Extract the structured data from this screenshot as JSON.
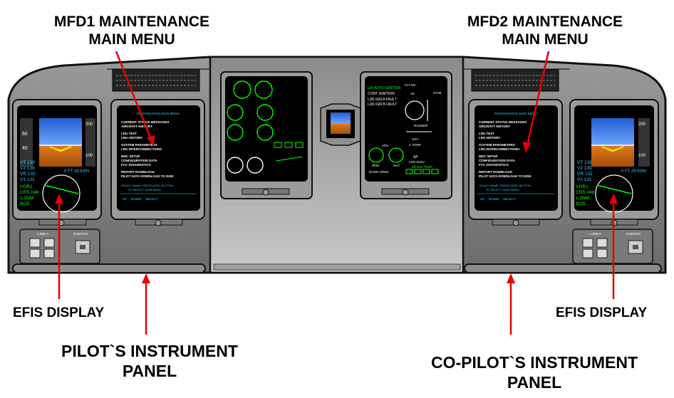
{
  "callouts": {
    "mfd1_line1": "MFD1 MAINTENANCE",
    "mfd1_line2": "MAIN MENU",
    "mfd2_line1": "MFD2 MAINTENANCE",
    "mfd2_line2": "MAIN MENU",
    "efis_left": "EFIS DISPLAY",
    "efis_right": "EFIS DISPLAY",
    "pilot_line1": "PILOT`S  INSTRUMENT",
    "pilot_line2": "PANEL",
    "copilot_line1": "CO-PILOT`S INSTRUMENT",
    "copilot_line2": "PANEL"
  },
  "efis": {
    "vt": "VT 139",
    "v2": "V2 139",
    "vr": "VR 132",
    "v1": "V1 131",
    "ft": "0 FT 29.92IN",
    "vor": "VOR1",
    "crs": "CRS 048",
    "nm": "1.2NM",
    "bos": "BOS"
  },
  "mfd_menu": {
    "title": "MAINTENANCE MAIN MENU",
    "items": [
      "CURRENT STATUS MESSAGES",
      "AIRCRAFT HISTORY",
      "LRU TEST",
      "LRU HISTORY",
      "SYSTEM PARAMETERS",
      "LRU INTERCONNECTIONS",
      "MDC SETUP",
      "CONFIGURATION DATA",
      "FCC DIAGNOSTICS",
      "REPORT DOWNLOAD",
      "PILOT DATA DOWNLOAD TO DISK"
    ],
    "footer1": "ON AVY PANEL PRESS DISPL BUTTON",
    "footer2": "TO SELECT SAVE MENU",
    "softkey_up": "UP",
    "softkey_down": "DOWN",
    "softkey_select": "SELECT"
  },
  "eicas": {
    "auto_ign": "L/R AUTO IGNITION",
    "cont_ign": "CONT IGNITION",
    "fault1": "L(R) IGN A FAULT",
    "fault2": "L(R) IGN B FAULT",
    "flt_no": "FLT NO.",
    "ail": "AIL",
    "stab": "STAB",
    "rudder": "RUDDER",
    "oxy": "OXY",
    "c_temp": "C TEMP",
    "dp": "ΔP",
    "ldg_elev": "LDG ELEV",
    "brake_temp": "BRAKE TEMP",
    "apu": "APU",
    "rpm": "RPM",
    "egt": "EGT",
    "door_open": "DOOR OPEN"
  },
  "ignition_panel": {
    "label": "IGNITION",
    "model": "L-808-A"
  }
}
